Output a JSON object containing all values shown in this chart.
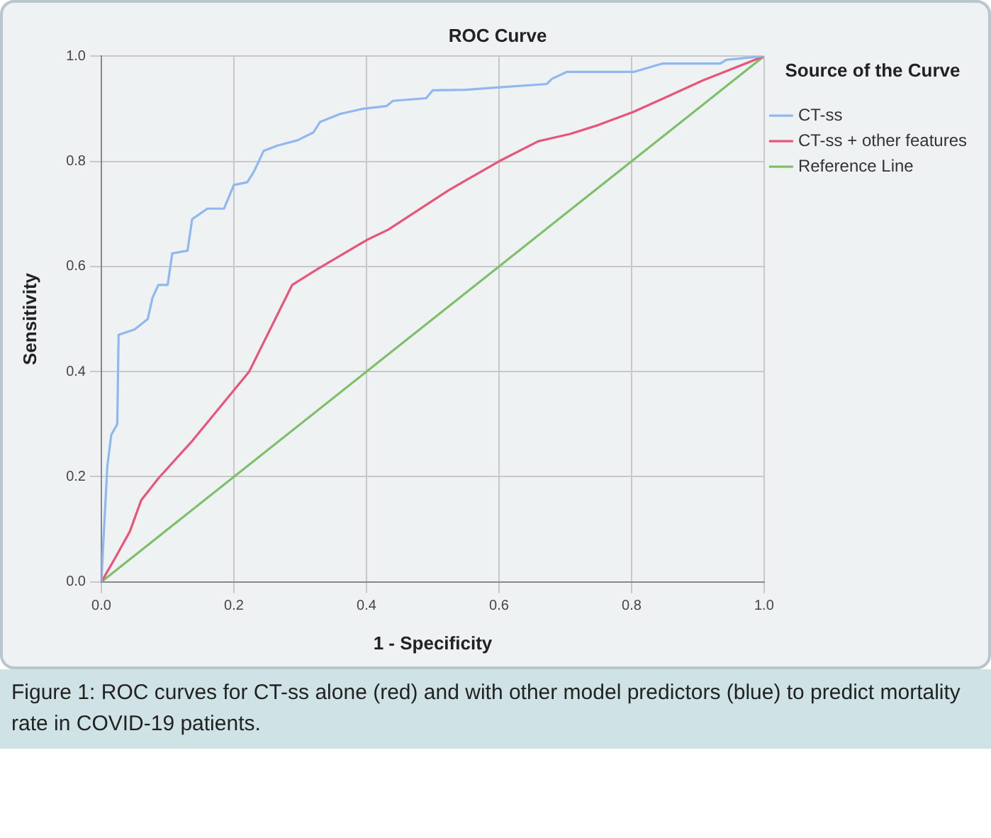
{
  "chart_data": {
    "type": "line",
    "title": "ROC Curve",
    "xlabel": "1 - Specificity",
    "ylabel": "Sensitivity",
    "legend_title": "Source of the Curve",
    "legend": "right",
    "marker": "none",
    "grid": true,
    "xlim": [
      0,
      1
    ],
    "ylim": [
      0,
      1
    ],
    "xticks": [
      {
        "value": 0,
        "label": "0.0"
      },
      {
        "value": 0.2,
        "label": "0.2"
      },
      {
        "value": 0.4,
        "label": "0.4"
      },
      {
        "value": 0.6,
        "label": "0.6"
      },
      {
        "value": 0.8,
        "label": "0.8"
      },
      {
        "value": 1,
        "label": "1.0"
      }
    ],
    "yticks": [
      {
        "value": 0,
        "label": "0.0"
      },
      {
        "value": 0.2,
        "label": "0.2"
      },
      {
        "value": 0.4,
        "label": "0.4"
      },
      {
        "value": 0.6,
        "label": "0.6"
      },
      {
        "value": 0.8,
        "label": "0.8"
      },
      {
        "value": 1,
        "label": "1.0"
      }
    ],
    "series": [
      {
        "name": "CT-ss",
        "color": "#8fb8f0",
        "x": [
          0,
          0.004,
          0.009,
          0.015,
          0.024,
          0.026,
          0.05,
          0.07,
          0.077,
          0.086,
          0.1,
          0.107,
          0.13,
          0.137,
          0.16,
          0.185,
          0.2,
          0.22,
          0.23,
          0.245,
          0.266,
          0.296,
          0.32,
          0.33,
          0.36,
          0.395,
          0.43,
          0.44,
          0.49,
          0.5,
          0.55,
          0.593,
          0.672,
          0.68,
          0.702,
          0.803,
          0.847,
          0.934,
          0.943,
          1
        ],
        "values": [
          0,
          0.1,
          0.22,
          0.28,
          0.3,
          0.47,
          0.48,
          0.5,
          0.54,
          0.565,
          0.565,
          0.625,
          0.63,
          0.69,
          0.71,
          0.71,
          0.755,
          0.76,
          0.78,
          0.82,
          0.83,
          0.84,
          0.855,
          0.875,
          0.89,
          0.9,
          0.905,
          0.915,
          0.92,
          0.935,
          0.936,
          0.94,
          0.947,
          0.957,
          0.97,
          0.97,
          0.986,
          0.986,
          0.993,
          1
        ]
      },
      {
        "name": "CT-ss + other features",
        "color": "#e8557a",
        "x": [
          0,
          0.021,
          0.043,
          0.06,
          0.086,
          0.137,
          0.223,
          0.288,
          0.326,
          0.4,
          0.433,
          0.524,
          0.6,
          0.659,
          0.707,
          0.75,
          0.803,
          0.847,
          0.908,
          1
        ],
        "values": [
          0,
          0.046,
          0.096,
          0.155,
          0.197,
          0.268,
          0.4,
          0.565,
          0.595,
          0.65,
          0.67,
          0.745,
          0.8,
          0.838,
          0.852,
          0.869,
          0.894,
          0.919,
          0.954,
          1
        ]
      },
      {
        "name": "Reference Line",
        "color": "#7fbf6a",
        "x": [
          0,
          1
        ],
        "values": [
          0,
          1
        ]
      }
    ],
    "annotations": [
      "Figure 1: ROC curves for CT-ss alone (red) and with other model predictors (blue) to predict mortality rate in COVID-19 patients."
    ]
  }
}
